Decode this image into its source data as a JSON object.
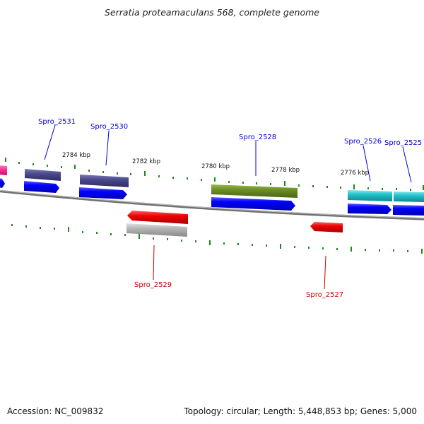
{
  "title": "Serratia proteamaculans 568, complete genome",
  "footer": {
    "accession": "Accession: NC_009832",
    "summary": "Topology: circular; Length: 5,448,853 bp; Genes: 5,000"
  },
  "ticks": [
    "2784 kbp",
    "2782 kbp",
    "2780 kbp",
    "2778 kbp",
    "2776 kbp"
  ],
  "labels": {
    "spro_2531": "Spro_2531",
    "spro_2530": "Spro_2530",
    "spro_2528": "Spro_2528",
    "spro_2526": "Spro_2526",
    "spro_2525": "Spro_2525",
    "spro_2529": "Spro_2529",
    "spro_2527": "Spro_2527"
  },
  "colors": {
    "forward_label": "#0000cc",
    "reverse_label": "#cc0000",
    "cds": "#0000ff",
    "feature_dark": "#4b4a8c",
    "feature_green": "#6b8e23",
    "feature_cyan": "#20c0c8",
    "feature_red": "#ee0000",
    "feature_gray": "#b4b4b4",
    "feature_pink": "#ff3399",
    "tick": "#1a8a1a",
    "backbone": "#808080"
  }
}
